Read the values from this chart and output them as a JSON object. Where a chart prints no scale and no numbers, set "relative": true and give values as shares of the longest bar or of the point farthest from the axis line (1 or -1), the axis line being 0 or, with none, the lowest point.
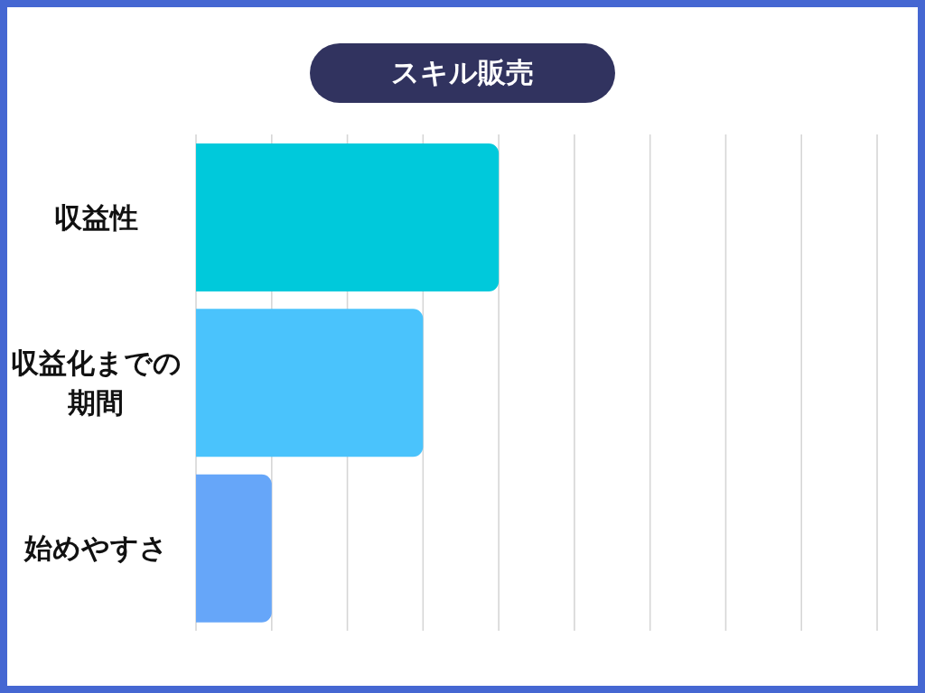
{
  "chart_data": {
    "type": "bar",
    "title": "スキル販売",
    "orientation": "horizontal",
    "relative": true,
    "categories": [
      "収益性",
      "収益化までの期間",
      "始めやすさ"
    ],
    "values": [
      1,
      0.75,
      0.25
    ],
    "colors": [
      "#00c9db",
      "#4ac3fc",
      "#66a6f9"
    ],
    "grid": "x"
  }
}
